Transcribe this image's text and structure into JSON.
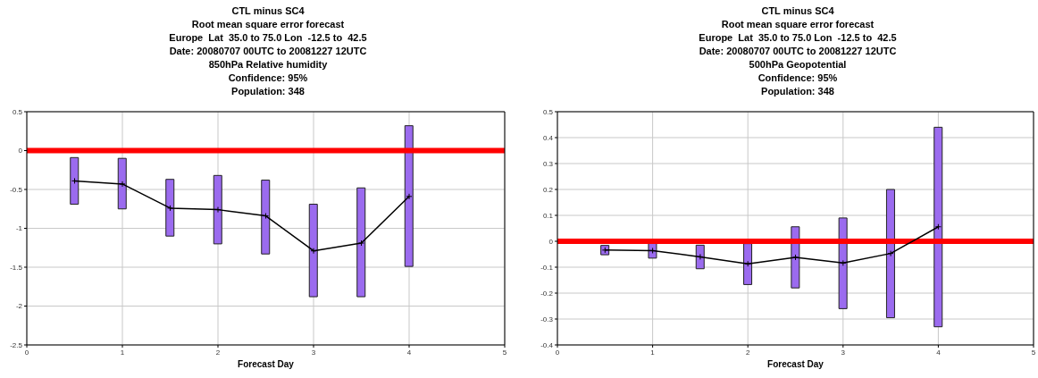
{
  "chart_data": [
    {
      "type": "bar",
      "title": "CTL minus SC4",
      "subtitle": "Root mean square error forecast\nEurope  Lat  35.0 to 75.0 Lon  -12.5 to  42.5\nDate: 20080707 00UTC to 20081227 12UTC\n850hPa Relative humidity\nConfidence: 95%\nPopulation: 348",
      "xlabel": "Forecast Day",
      "xlim": [
        0,
        5
      ],
      "xticks": [
        0,
        1,
        2,
        3,
        4,
        5
      ],
      "ylim": [
        -2.5,
        0.5
      ],
      "yticks": [
        0.5,
        0,
        -0.5,
        -1,
        -1.5,
        -2,
        -2.5
      ],
      "grid": true,
      "ref_lines": [
        {
          "axis": "y",
          "value": 0,
          "color": "#ff0000"
        }
      ],
      "series": [
        {
          "color": "#9b6bef",
          "x": [
            0.5,
            1,
            1.5,
            2,
            2.5,
            3,
            3.5,
            4
          ],
          "base": [
            -0.69,
            -0.75,
            -1.1,
            -1.2,
            -1.33,
            -1.88,
            -1.88,
            -1.49
          ],
          "values": [
            0.6,
            0.65,
            0.73,
            0.88,
            0.95,
            1.19,
            1.4,
            1.81
          ]
        },
        {
          "type": "line",
          "color": "#000000",
          "marker": "cross",
          "x": [
            0.5,
            1,
            1.5,
            2,
            2.5,
            3,
            3.5,
            4
          ],
          "values": [
            -0.39,
            -0.43,
            -0.74,
            -0.76,
            -0.84,
            -1.29,
            -1.19,
            -0.59
          ]
        }
      ]
    },
    {
      "type": "bar",
      "title": "CTL minus SC4",
      "subtitle": "Root mean square error forecast\nEurope  Lat  35.0 to 75.0 Lon  -12.5 to  42.5\nDate: 20080707 00UTC to 20081227 12UTC\n500hPa Geopotential\nConfidence: 95%\nPopulation: 348",
      "xlabel": "Forecast Day",
      "xlim": [
        0,
        5
      ],
      "xticks": [
        0,
        1,
        2,
        3,
        4,
        5
      ],
      "ylim": [
        -0.4,
        0.5
      ],
      "yticks": [
        0.5,
        0.4,
        0.3,
        0.2,
        0.1,
        0,
        -0.1,
        -0.2,
        -0.3,
        -0.4
      ],
      "grid": true,
      "ref_lines": [
        {
          "axis": "y",
          "value": 0,
          "color": "#ff0000"
        }
      ],
      "series": [
        {
          "color": "#9b6bef",
          "x": [
            0.5,
            1,
            1.5,
            2,
            2.5,
            3,
            3.5,
            4
          ],
          "base": [
            -0.052,
            -0.065,
            -0.106,
            -0.167,
            -0.18,
            -0.26,
            -0.295,
            -0.33
          ],
          "values": [
            0.036,
            0.057,
            0.091,
            0.158,
            0.236,
            0.35,
            0.495,
            0.77
          ]
        },
        {
          "type": "line",
          "color": "#000000",
          "marker": "cross",
          "x": [
            0.5,
            1,
            1.5,
            2,
            2.5,
            3,
            3.5,
            4
          ],
          "values": [
            -0.034,
            -0.036,
            -0.06,
            -0.087,
            -0.062,
            -0.084,
            -0.047,
            0.056
          ]
        }
      ]
    }
  ]
}
